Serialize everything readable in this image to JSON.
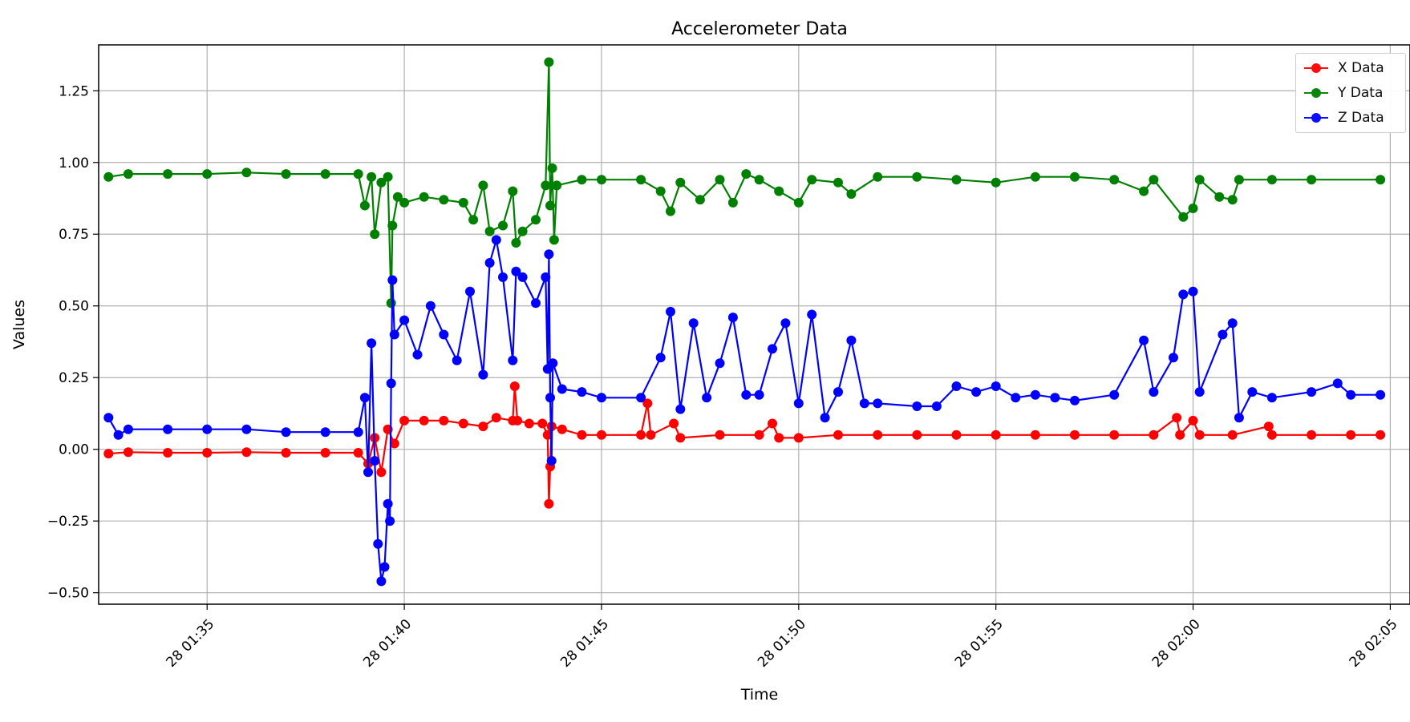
{
  "chart_data": {
    "type": "line",
    "title": "Accelerometer Data",
    "xlabel": "Time",
    "ylabel": "Values",
    "x_ticks": [
      "28 01:35",
      "28 01:40",
      "28 01:45",
      "28 01:50",
      "28 01:55",
      "28 02:00",
      "28 02:05"
    ],
    "y_ticks": [
      "−0.50",
      "−0.25",
      "0.00",
      "0.25",
      "0.50",
      "0.75",
      "1.00",
      "1.25"
    ],
    "xlim": [
      "28 01:32:15",
      "28 02:05:30"
    ],
    "ylim": [
      -0.54,
      1.41
    ],
    "grid": true,
    "legend_position": "top-right",
    "series": [
      {
        "name": "X Data",
        "color": "#ff0000",
        "points": [
          [
            "28 01:32:30",
            -0.015
          ],
          [
            "28 01:33:00",
            -0.01
          ],
          [
            "28 01:34:00",
            -0.012
          ],
          [
            "28 01:35:00",
            -0.012
          ],
          [
            "28 01:36:00",
            -0.01
          ],
          [
            "28 01:37:00",
            -0.012
          ],
          [
            "28 01:38:00",
            -0.012
          ],
          [
            "28 01:38:50",
            -0.012
          ],
          [
            "28 01:39:05",
            -0.05
          ],
          [
            "28 01:39:15",
            0.04
          ],
          [
            "28 01:39:25",
            -0.08
          ],
          [
            "28 01:39:35",
            0.07
          ],
          [
            "28 01:39:45",
            0.02
          ],
          [
            "28 01:40:00",
            0.1
          ],
          [
            "28 01:40:30",
            0.1
          ],
          [
            "28 01:41:00",
            0.1
          ],
          [
            "28 01:41:30",
            0.09
          ],
          [
            "28 01:42:00",
            0.08
          ],
          [
            "28 01:42:20",
            0.11
          ],
          [
            "28 01:42:45",
            0.1
          ],
          [
            "28 01:42:48",
            0.22
          ],
          [
            "28 01:42:52",
            0.1
          ],
          [
            "28 01:43:10",
            0.09
          ],
          [
            "28 01:43:30",
            0.09
          ],
          [
            "28 01:43:38",
            0.05
          ],
          [
            "28 01:43:40",
            -0.19
          ],
          [
            "28 01:43:42",
            -0.06
          ],
          [
            "28 01:43:44",
            0.08
          ],
          [
            "28 01:44:00",
            0.07
          ],
          [
            "28 01:44:30",
            0.05
          ],
          [
            "28 01:45:00",
            0.05
          ],
          [
            "28 01:46:00",
            0.05
          ],
          [
            "28 01:46:10",
            0.16
          ],
          [
            "28 01:46:15",
            0.05
          ],
          [
            "28 01:46:50",
            0.09
          ],
          [
            "28 01:47:00",
            0.04
          ],
          [
            "28 01:48:00",
            0.05
          ],
          [
            "28 01:49:00",
            0.05
          ],
          [
            "28 01:49:20",
            0.09
          ],
          [
            "28 01:49:30",
            0.04
          ],
          [
            "28 01:50:00",
            0.04
          ],
          [
            "28 01:51:00",
            0.05
          ],
          [
            "28 01:52:00",
            0.05
          ],
          [
            "28 01:53:00",
            0.05
          ],
          [
            "28 01:54:00",
            0.05
          ],
          [
            "28 01:55:00",
            0.05
          ],
          [
            "28 01:56:00",
            0.05
          ],
          [
            "28 01:57:00",
            0.05
          ],
          [
            "28 01:58:00",
            0.05
          ],
          [
            "28 01:59:00",
            0.05
          ],
          [
            "28 01:59:35",
            0.11
          ],
          [
            "28 01:59:40",
            0.05
          ],
          [
            "28 02:00:00",
            0.1
          ],
          [
            "28 02:00:10",
            0.05
          ],
          [
            "28 02:01:00",
            0.05
          ],
          [
            "28 02:01:55",
            0.08
          ],
          [
            "28 02:02:00",
            0.05
          ],
          [
            "28 02:03:00",
            0.05
          ],
          [
            "28 02:04:00",
            0.05
          ],
          [
            "28 02:04:45",
            0.05
          ]
        ]
      },
      {
        "name": "Y Data",
        "color": "#008000",
        "points": [
          [
            "28 01:32:30",
            0.95
          ],
          [
            "28 01:33:00",
            0.96
          ],
          [
            "28 01:34:00",
            0.96
          ],
          [
            "28 01:35:00",
            0.96
          ],
          [
            "28 01:36:00",
            0.965
          ],
          [
            "28 01:37:00",
            0.96
          ],
          [
            "28 01:38:00",
            0.96
          ],
          [
            "28 01:38:50",
            0.96
          ],
          [
            "28 01:39:00",
            0.85
          ],
          [
            "28 01:39:10",
            0.95
          ],
          [
            "28 01:39:15",
            0.75
          ],
          [
            "28 01:39:25",
            0.93
          ],
          [
            "28 01:39:35",
            0.95
          ],
          [
            "28 01:39:40",
            0.51
          ],
          [
            "28 01:39:42",
            0.78
          ],
          [
            "28 01:39:50",
            0.88
          ],
          [
            "28 01:40:00",
            0.86
          ],
          [
            "28 01:40:30",
            0.88
          ],
          [
            "28 01:41:00",
            0.87
          ],
          [
            "28 01:41:30",
            0.86
          ],
          [
            "28 01:41:45",
            0.8
          ],
          [
            "28 01:42:00",
            0.92
          ],
          [
            "28 01:42:10",
            0.76
          ],
          [
            "28 01:42:30",
            0.78
          ],
          [
            "28 01:42:45",
            0.9
          ],
          [
            "28 01:42:50",
            0.72
          ],
          [
            "28 01:43:00",
            0.76
          ],
          [
            "28 01:43:20",
            0.8
          ],
          [
            "28 01:43:35",
            0.92
          ],
          [
            "28 01:43:40",
            1.35
          ],
          [
            "28 01:43:42",
            0.85
          ],
          [
            "28 01:43:45",
            0.98
          ],
          [
            "28 01:43:48",
            0.73
          ],
          [
            "28 01:43:52",
            0.92
          ],
          [
            "28 01:44:30",
            0.94
          ],
          [
            "28 01:45:00",
            0.94
          ],
          [
            "28 01:46:00",
            0.94
          ],
          [
            "28 01:46:30",
            0.9
          ],
          [
            "28 01:46:45",
            0.83
          ],
          [
            "28 01:47:00",
            0.93
          ],
          [
            "28 01:47:30",
            0.87
          ],
          [
            "28 01:48:00",
            0.94
          ],
          [
            "28 01:48:20",
            0.86
          ],
          [
            "28 01:48:40",
            0.96
          ],
          [
            "28 01:49:00",
            0.94
          ],
          [
            "28 01:49:30",
            0.9
          ],
          [
            "28 01:50:00",
            0.86
          ],
          [
            "28 01:50:20",
            0.94
          ],
          [
            "28 01:51:00",
            0.93
          ],
          [
            "28 01:51:20",
            0.89
          ],
          [
            "28 01:52:00",
            0.95
          ],
          [
            "28 01:53:00",
            0.95
          ],
          [
            "28 01:54:00",
            0.94
          ],
          [
            "28 01:55:00",
            0.93
          ],
          [
            "28 01:56:00",
            0.95
          ],
          [
            "28 01:57:00",
            0.95
          ],
          [
            "28 01:58:00",
            0.94
          ],
          [
            "28 01:58:45",
            0.9
          ],
          [
            "28 01:59:00",
            0.94
          ],
          [
            "28 01:59:45",
            0.81
          ],
          [
            "28 02:00:00",
            0.84
          ],
          [
            "28 02:00:10",
            0.94
          ],
          [
            "28 02:00:40",
            0.88
          ],
          [
            "28 02:01:00",
            0.87
          ],
          [
            "28 02:01:10",
            0.94
          ],
          [
            "28 02:02:00",
            0.94
          ],
          [
            "28 02:03:00",
            0.94
          ],
          [
            "28 02:04:45",
            0.94
          ]
        ]
      },
      {
        "name": "Z Data",
        "color": "#0000ff",
        "points": [
          [
            "28 01:32:30",
            0.11
          ],
          [
            "28 01:32:45",
            0.05
          ],
          [
            "28 01:33:00",
            0.07
          ],
          [
            "28 01:34:00",
            0.07
          ],
          [
            "28 01:35:00",
            0.07
          ],
          [
            "28 01:36:00",
            0.07
          ],
          [
            "28 01:37:00",
            0.06
          ],
          [
            "28 01:38:00",
            0.06
          ],
          [
            "28 01:38:50",
            0.06
          ],
          [
            "28 01:39:00",
            0.18
          ],
          [
            "28 01:39:05",
            -0.08
          ],
          [
            "28 01:39:10",
            0.37
          ],
          [
            "28 01:39:15",
            -0.04
          ],
          [
            "28 01:39:20",
            -0.33
          ],
          [
            "28 01:39:25",
            -0.46
          ],
          [
            "28 01:39:30",
            -0.41
          ],
          [
            "28 01:39:35",
            -0.19
          ],
          [
            "28 01:39:38",
            -0.25
          ],
          [
            "28 01:39:40",
            0.23
          ],
          [
            "28 01:39:42",
            0.59
          ],
          [
            "28 01:39:45",
            0.4
          ],
          [
            "28 01:40:00",
            0.45
          ],
          [
            "28 01:40:20",
            0.33
          ],
          [
            "28 01:40:40",
            0.5
          ],
          [
            "28 01:41:00",
            0.4
          ],
          [
            "28 01:41:20",
            0.31
          ],
          [
            "28 01:41:40",
            0.55
          ],
          [
            "28 01:42:00",
            0.26
          ],
          [
            "28 01:42:10",
            0.65
          ],
          [
            "28 01:42:20",
            0.73
          ],
          [
            "28 01:42:30",
            0.6
          ],
          [
            "28 01:42:45",
            0.31
          ],
          [
            "28 01:42:50",
            0.62
          ],
          [
            "28 01:43:00",
            0.6
          ],
          [
            "28 01:43:20",
            0.51
          ],
          [
            "28 01:43:35",
            0.6
          ],
          [
            "28 01:43:38",
            0.28
          ],
          [
            "28 01:43:40",
            0.68
          ],
          [
            "28 01:43:42",
            0.18
          ],
          [
            "28 01:43:44",
            -0.04
          ],
          [
            "28 01:43:46",
            0.3
          ],
          [
            "28 01:44:00",
            0.21
          ],
          [
            "28 01:44:30",
            0.2
          ],
          [
            "28 01:45:00",
            0.18
          ],
          [
            "28 01:46:00",
            0.18
          ],
          [
            "28 01:46:30",
            0.32
          ],
          [
            "28 01:46:45",
            0.48
          ],
          [
            "28 01:47:00",
            0.14
          ],
          [
            "28 01:47:20",
            0.44
          ],
          [
            "28 01:47:40",
            0.18
          ],
          [
            "28 01:48:00",
            0.3
          ],
          [
            "28 01:48:20",
            0.46
          ],
          [
            "28 01:48:40",
            0.19
          ],
          [
            "28 01:49:00",
            0.19
          ],
          [
            "28 01:49:20",
            0.35
          ],
          [
            "28 01:49:40",
            0.44
          ],
          [
            "28 01:50:00",
            0.16
          ],
          [
            "28 01:50:20",
            0.47
          ],
          [
            "28 01:50:40",
            0.11
          ],
          [
            "28 01:51:00",
            0.2
          ],
          [
            "28 01:51:20",
            0.38
          ],
          [
            "28 01:51:40",
            0.16
          ],
          [
            "28 01:52:00",
            0.16
          ],
          [
            "28 01:53:00",
            0.15
          ],
          [
            "28 01:53:30",
            0.15
          ],
          [
            "28 01:54:00",
            0.22
          ],
          [
            "28 01:54:30",
            0.2
          ],
          [
            "28 01:55:00",
            0.22
          ],
          [
            "28 01:55:30",
            0.18
          ],
          [
            "28 01:56:00",
            0.19
          ],
          [
            "28 01:56:30",
            0.18
          ],
          [
            "28 01:57:00",
            0.17
          ],
          [
            "28 01:58:00",
            0.19
          ],
          [
            "28 01:58:45",
            0.38
          ],
          [
            "28 01:59:00",
            0.2
          ],
          [
            "28 01:59:30",
            0.32
          ],
          [
            "28 01:59:45",
            0.54
          ],
          [
            "28 02:00:00",
            0.55
          ],
          [
            "28 02:00:10",
            0.2
          ],
          [
            "28 02:00:45",
            0.4
          ],
          [
            "28 02:01:00",
            0.44
          ],
          [
            "28 02:01:10",
            0.11
          ],
          [
            "28 02:01:30",
            0.2
          ],
          [
            "28 02:02:00",
            0.18
          ],
          [
            "28 02:03:00",
            0.2
          ],
          [
            "28 02:03:40",
            0.23
          ],
          [
            "28 02:04:00",
            0.19
          ],
          [
            "28 02:04:45",
            0.19
          ]
        ]
      }
    ]
  }
}
